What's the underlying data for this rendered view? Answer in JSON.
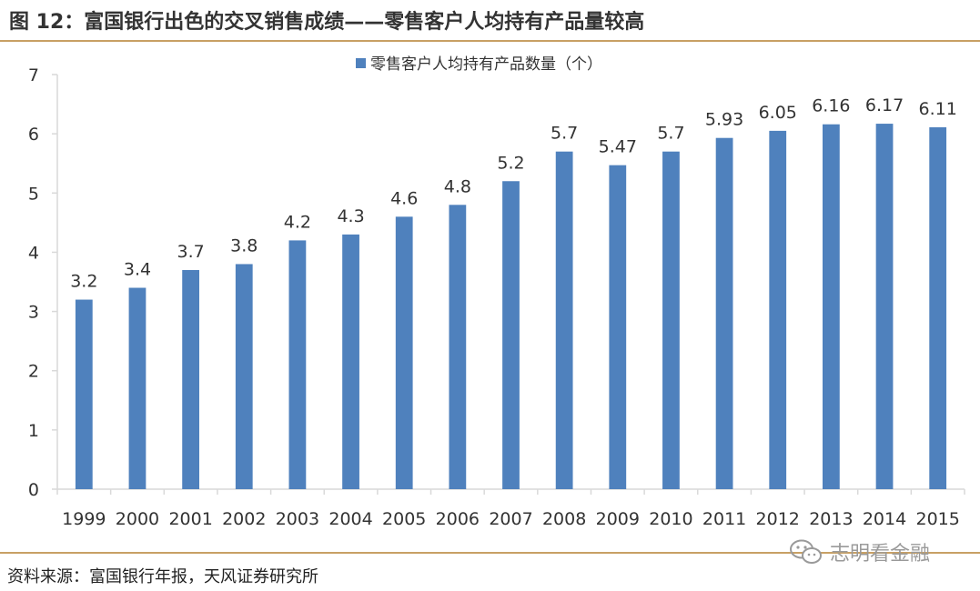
{
  "figure": {
    "title": "图 12：富国银行出色的交叉销售成绩——零售客户人均持有产品量较高",
    "source": "资料来源：富国银行年报，天风证券研究所",
    "watermark": "志明看金融",
    "watermark_icon": "wechat-icon"
  },
  "colors": {
    "bar": "#4f81bd",
    "rule": "#c8a064",
    "axis": "#d9d9d9",
    "text": "#333333"
  },
  "chart_data": {
    "type": "bar",
    "title": "",
    "xlabel": "",
    "ylabel": "",
    "categories": [
      "1999",
      "2000",
      "2001",
      "2002",
      "2003",
      "2004",
      "2005",
      "2006",
      "2007",
      "2008",
      "2009",
      "2010",
      "2011",
      "2012",
      "2013",
      "2014",
      "2015"
    ],
    "series": [
      {
        "name": "零售客户人均持有产品数量（个）",
        "values": [
          3.2,
          3.4,
          3.7,
          3.8,
          4.2,
          4.3,
          4.6,
          4.8,
          5.2,
          5.7,
          5.47,
          5.7,
          5.93,
          6.05,
          6.16,
          6.17,
          6.11
        ],
        "labels": [
          "3.2",
          "3.4",
          "3.7",
          "3.8",
          "4.2",
          "4.3",
          "4.6",
          "4.8",
          "5.2",
          "5.7",
          "5.47",
          "5.7",
          "5.93",
          "6.05",
          "6.16",
          "6.17",
          "6.11"
        ]
      }
    ],
    "ylim": [
      0,
      7
    ],
    "yticks": [
      "0",
      "1",
      "2",
      "3",
      "4",
      "5",
      "6",
      "7"
    ],
    "grid": false,
    "legend_position": "top"
  }
}
